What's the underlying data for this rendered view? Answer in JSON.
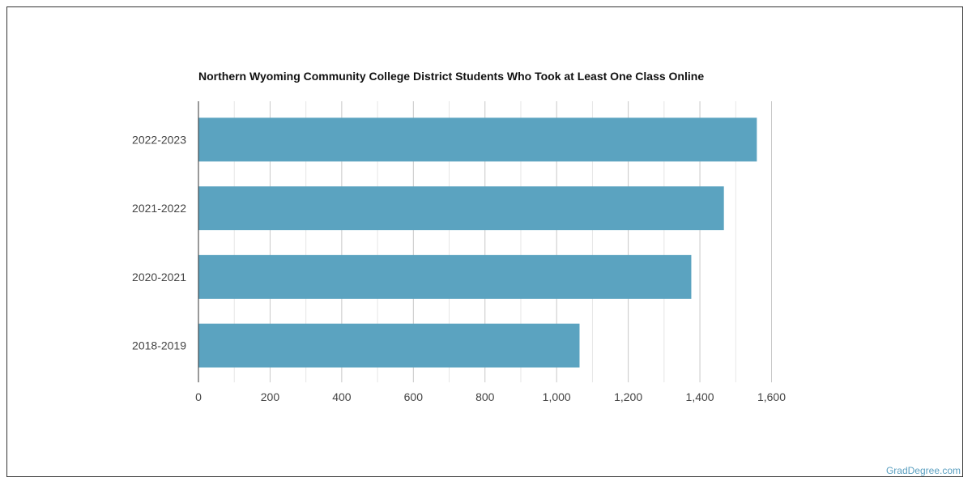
{
  "chart_data": {
    "type": "bar",
    "orientation": "horizontal",
    "title": "Northern Wyoming Community College District Students Who Took at Least One Class Online",
    "categories": [
      "2022-2023",
      "2021-2022",
      "2020-2021",
      "2018-2019"
    ],
    "values": [
      1559,
      1467,
      1376,
      1064
    ],
    "xlim": [
      0,
      1600
    ],
    "xticks": [
      0,
      200,
      400,
      600,
      800,
      1000,
      1200,
      1400,
      1600
    ],
    "xtick_labels": [
      "0",
      "200",
      "400",
      "600",
      "800",
      "1,000",
      "1,200",
      "1,400",
      "1,600"
    ],
    "xlabel": "",
    "ylabel": "",
    "grid": true,
    "bar_color": "#5ba3c0"
  },
  "credit": "GradDegree.com"
}
